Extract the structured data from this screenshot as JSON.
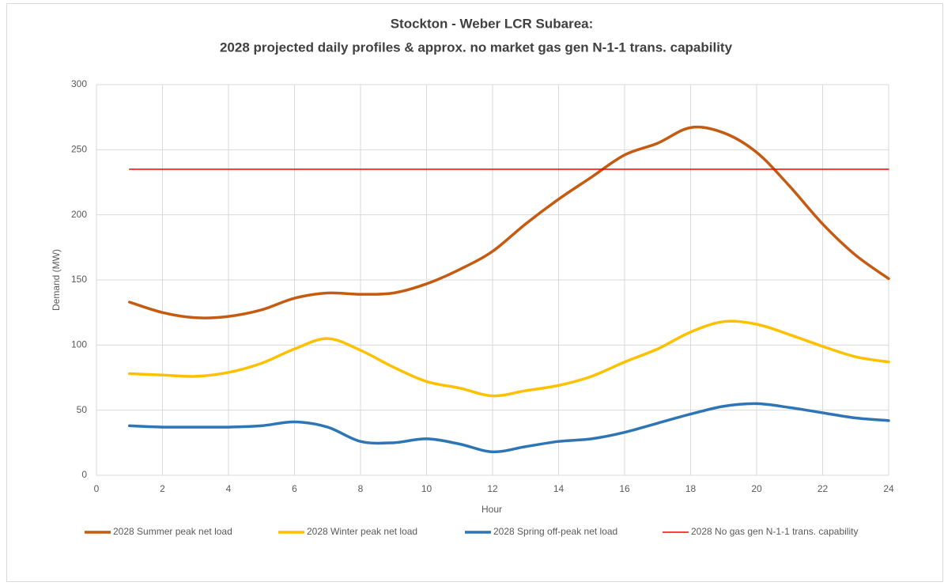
{
  "chart_data": {
    "type": "line",
    "title": "Stockton - Weber LCR Subarea:",
    "subtitle": "2028 projected daily profiles & approx. no market gas gen N-1-1 trans. capability",
    "x_label": "Hour",
    "y_label": "Demand (MW)",
    "x": [
      1,
      2,
      3,
      4,
      5,
      6,
      7,
      8,
      9,
      10,
      11,
      12,
      13,
      14,
      15,
      16,
      17,
      18,
      19,
      20,
      21,
      22,
      23,
      24
    ],
    "series": [
      {
        "name": "2028 Summer peak net load",
        "color": "#c55a11",
        "width": 3.5,
        "smooth": true,
        "values": [
          133,
          125,
          121,
          122,
          127,
          136,
          140,
          139,
          140,
          147,
          158,
          172,
          193,
          212,
          229,
          246,
          255,
          267,
          263,
          248,
          222,
          193,
          169,
          151
        ]
      },
      {
        "name": "2028 Winter peak net load",
        "color": "#ffc000",
        "width": 3.5,
        "smooth": true,
        "values": [
          78,
          77,
          76,
          79,
          86,
          97,
          105,
          96,
          83,
          72,
          67,
          61,
          65,
          69,
          76,
          87,
          97,
          110,
          118,
          116,
          108,
          99,
          91,
          87
        ]
      },
      {
        "name": "2028 Spring off-peak net load",
        "color": "#2e75b6",
        "width": 3.5,
        "smooth": true,
        "values": [
          38,
          37,
          37,
          37,
          38,
          41,
          37,
          26,
          25,
          28,
          24,
          18,
          22,
          26,
          28,
          33,
          40,
          47,
          53,
          55,
          52,
          48,
          44,
          42
        ]
      },
      {
        "name": "2028 No gas gen N-1-1 trans. capability",
        "color": "#ff0000",
        "width": 1.5,
        "smooth": false,
        "values": [
          235,
          235,
          235,
          235,
          235,
          235,
          235,
          235,
          235,
          235,
          235,
          235,
          235,
          235,
          235,
          235,
          235,
          235,
          235,
          235,
          235,
          235,
          235,
          235
        ]
      }
    ],
    "xlim": [
      0,
      24
    ],
    "xticks": [
      0,
      2,
      4,
      6,
      8,
      10,
      12,
      14,
      16,
      18,
      20,
      22,
      24
    ],
    "ylim": [
      0,
      300
    ],
    "yticks": [
      0,
      50,
      100,
      150,
      200,
      250,
      300
    ],
    "grid": true,
    "legend": "bottom"
  }
}
